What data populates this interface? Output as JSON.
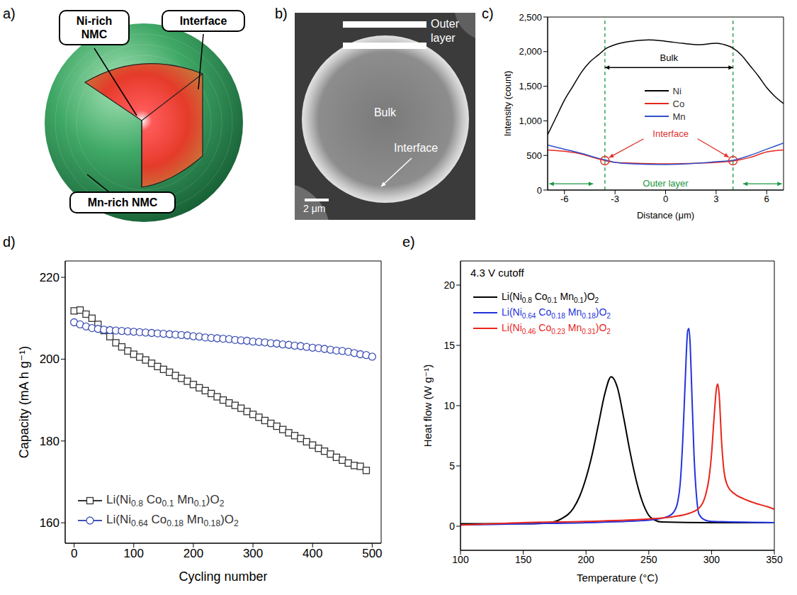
{
  "panels": {
    "a": {
      "letter": "a)",
      "labels": {
        "core": "Ni-rich NMC",
        "interface": "Interface",
        "shell": "Mn-rich NMC"
      }
    },
    "b": {
      "letter": "b)",
      "labels": {
        "outer": "Outer layer",
        "bulk": "Bulk",
        "interface": "Interface",
        "scale_bar": "2 μm"
      }
    }
  },
  "chart_data": [
    {
      "letter": "c)",
      "type": "line",
      "x_label": "Distance (μm)",
      "y_label": "Intensity (count)",
      "xlim": [
        -7,
        7
      ],
      "xticks": [
        -6,
        -3,
        0,
        3,
        6
      ],
      "ylim": [
        0,
        2500
      ],
      "yticks": [
        0,
        500,
        {
          "value": 1000,
          "label": "1,000"
        },
        {
          "value": 1500,
          "label": "1,500"
        },
        {
          "value": 2000,
          "label": "2,000"
        },
        {
          "value": 2500,
          "label": "2,500"
        }
      ],
      "legend": "center",
      "series": [
        {
          "name": "Ni",
          "color": "#000000",
          "x": [
            -7,
            -6.5,
            -6,
            -5.5,
            -5,
            -4.5,
            -4,
            -3.5,
            -3,
            -2,
            -1,
            0,
            1,
            2,
            3,
            3.5,
            4,
            4.5,
            5,
            5.5,
            6,
            6.5,
            7
          ],
          "values": [
            800,
            1050,
            1300,
            1500,
            1700,
            1850,
            1950,
            2050,
            2100,
            2150,
            2170,
            2150,
            2120,
            2100,
            2120,
            2100,
            2050,
            1950,
            1800,
            1650,
            1480,
            1350,
            1250
          ]
        },
        {
          "name": "Co",
          "color": "#e8261c",
          "x": [
            -7,
            -6,
            -5,
            -4,
            -3.5,
            -3,
            -2,
            0,
            2,
            3,
            4,
            5,
            6,
            7
          ],
          "values": [
            580,
            560,
            520,
            450,
            420,
            400,
            390,
            380,
            390,
            400,
            420,
            470,
            550,
            580
          ]
        },
        {
          "name": "Mn",
          "color": "#3050c8",
          "x": [
            -7,
            -6,
            -5,
            -4,
            -3.5,
            -3,
            -2,
            0,
            2,
            3,
            4,
            5,
            6,
            7
          ],
          "values": [
            650,
            590,
            530,
            460,
            430,
            400,
            380,
            370,
            390,
            410,
            430,
            500,
            590,
            680
          ]
        }
      ],
      "boundaries": [
        -3.6,
        4.0
      ],
      "interface_points": {
        "x": [
          -3.6,
          4.0
        ],
        "y": [
          425,
          425
        ]
      },
      "annotations": {
        "bulk": "Bulk",
        "interface": "Interface",
        "outer": "Outer layer"
      }
    },
    {
      "letter": "d)",
      "type": "line",
      "x_label": "Cycling number",
      "y_label": "Capacity (mA h g⁻¹)",
      "xlim": [
        -15,
        515
      ],
      "xticks": [
        0,
        100,
        200,
        300,
        400,
        500
      ],
      "ylim": [
        155,
        224
      ],
      "yticks": [
        160,
        180,
        200,
        220
      ],
      "legend": "lower left",
      "series": [
        {
          "name": "Li(Ni0.8 Co0.1 Mn0.1)O2",
          "color": "#333333",
          "marker": "square",
          "x": [
            0,
            10,
            20,
            30,
            40,
            50,
            60,
            70,
            80,
            90,
            100,
            110,
            120,
            130,
            140,
            150,
            160,
            170,
            180,
            190,
            200,
            210,
            220,
            230,
            240,
            250,
            260,
            270,
            280,
            290,
            300,
            310,
            320,
            330,
            340,
            350,
            360,
            370,
            380,
            390,
            400,
            410,
            420,
            430,
            440,
            450,
            460,
            470,
            480,
            490
          ],
          "values": [
            211.8,
            212,
            211,
            210,
            208.5,
            207,
            205.5,
            204,
            203,
            202,
            201.2,
            200.5,
            199.8,
            199,
            198.2,
            197.5,
            196.8,
            196,
            195.3,
            194.6,
            193.8,
            193,
            192.3,
            191.6,
            190.8,
            190,
            189.3,
            188.7,
            188,
            187.2,
            186.5,
            185.8,
            185,
            184.3,
            183.6,
            182.8,
            182,
            181.3,
            180.6,
            179.8,
            179,
            178.2,
            177.5,
            176.8,
            176,
            175.3,
            174.6,
            174,
            173.8,
            172.8
          ]
        },
        {
          "name": "Li(Ni0.64 Co0.18 Mn0.18)O2",
          "color": "#3f51b5",
          "marker": "circle",
          "x": [
            0,
            10,
            20,
            30,
            40,
            50,
            60,
            70,
            80,
            90,
            100,
            110,
            120,
            130,
            140,
            150,
            160,
            170,
            180,
            190,
            200,
            210,
            220,
            230,
            240,
            250,
            260,
            270,
            280,
            290,
            300,
            310,
            320,
            330,
            340,
            350,
            360,
            370,
            380,
            390,
            400,
            410,
            420,
            430,
            440,
            450,
            460,
            470,
            480,
            490,
            500
          ],
          "values": [
            209,
            208.5,
            208,
            207.6,
            207.4,
            207.2,
            207.1,
            207,
            206.9,
            206.8,
            206.7,
            206.6,
            206.5,
            206.4,
            206.3,
            206.2,
            206.1,
            206,
            205.9,
            205.8,
            205.6,
            205.5,
            205.3,
            205.2,
            205.1,
            205,
            204.9,
            204.7,
            204.6,
            204.5,
            204.3,
            204.2,
            204.1,
            203.9,
            203.8,
            203.6,
            203.5,
            203.3,
            203.2,
            203,
            202.8,
            202.7,
            202.5,
            202.3,
            202.1,
            202,
            201.8,
            201.5,
            201.2,
            201,
            200.6
          ]
        }
      ]
    },
    {
      "letter": "e)",
      "type": "line",
      "annotation": "4.3 V cutoff",
      "x_label": "Temperature (°C)",
      "y_label": "Heat flow (W g⁻¹)",
      "xlim": [
        100,
        350
      ],
      "xticks": [
        100,
        150,
        200,
        250,
        300,
        350
      ],
      "ylim": [
        -2,
        22
      ],
      "yticks": [
        0,
        5,
        10,
        15,
        20
      ],
      "legend": "upper left",
      "series": [
        {
          "name": "Li(Ni0.8 Co0.1 Mn0.1)O2",
          "color": "#000000",
          "x": [
            100,
            150,
            170,
            180,
            190,
            195,
            200,
            205,
            210,
            215,
            220,
            225,
            230,
            235,
            240,
            245,
            250,
            255,
            260,
            300,
            350
          ],
          "values": [
            0.2,
            0.2,
            0.3,
            0.6,
            1.5,
            2.5,
            4.0,
            6.0,
            8.5,
            11.0,
            12.4,
            11.5,
            9.0,
            6.2,
            3.8,
            2.0,
            0.9,
            0.5,
            0.35,
            0.3,
            0.3
          ]
        },
        {
          "name": "Li(Ni0.64 Co0.18 Mn0.18)O2",
          "color": "#2233dd",
          "x": [
            100,
            150,
            200,
            250,
            265,
            270,
            273,
            275,
            277,
            279,
            281,
            282,
            283,
            284,
            286,
            288,
            290,
            295,
            300,
            350
          ],
          "values": [
            0.1,
            0.2,
            0.3,
            0.5,
            0.8,
            1.2,
            2,
            3.5,
            7,
            12,
            16.2,
            16.4,
            15,
            12,
            6,
            2.5,
            1,
            0.5,
            0.4,
            0.3
          ]
        },
        {
          "name": "Li(Ni0.46 Co0.23 Mn0.31)O2",
          "color": "#e8261c",
          "x": [
            100,
            150,
            200,
            250,
            270,
            280,
            290,
            295,
            298,
            300,
            302,
            304,
            305,
            306,
            308,
            310,
            313,
            318,
            325,
            335,
            345,
            350
          ],
          "values": [
            0.1,
            0.3,
            0.4,
            0.6,
            0.8,
            1.0,
            1.5,
            2.5,
            4,
            6,
            9,
            11.5,
            11.8,
            11,
            7,
            4.5,
            3.3,
            2.7,
            2.3,
            1.9,
            1.6,
            1.4
          ]
        }
      ]
    }
  ]
}
